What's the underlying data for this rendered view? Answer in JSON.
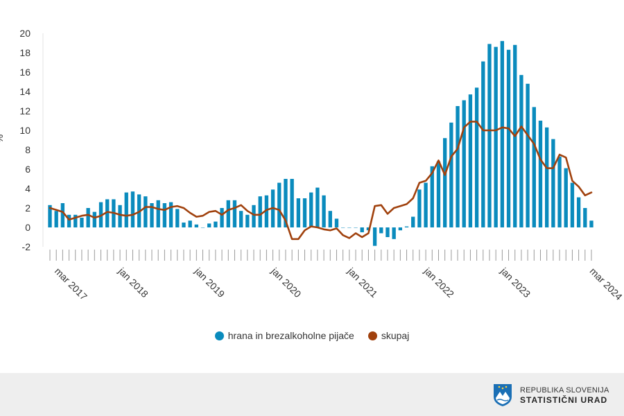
{
  "chart_data": {
    "type": "bar+line",
    "title": "",
    "xlabel": "",
    "ylabel": "%",
    "ylim": [
      -2,
      20
    ],
    "yticks": [
      "20",
      "18",
      "16",
      "14",
      "12",
      "10",
      "8",
      "6",
      "4",
      "2",
      "0",
      "-2"
    ],
    "x_tick_labels": [
      {
        "label": "mar 2017",
        "index": 0
      },
      {
        "label": "jan 2018",
        "index": 10
      },
      {
        "label": "jan 2019",
        "index": 22
      },
      {
        "label": "jan 2020",
        "index": 34
      },
      {
        "label": "jan 2021",
        "index": 46
      },
      {
        "label": "jan 2022",
        "index": 58
      },
      {
        "label": "jan 2023",
        "index": 70
      },
      {
        "label": "mar 2024",
        "index": 84
      }
    ],
    "series": [
      {
        "name": "hrana in brezalkoholne pijače",
        "kind": "bar",
        "color": "#0a8bbd",
        "values": [
          2.3,
          1.7,
          2.5,
          1.3,
          1.3,
          1.0,
          2.0,
          1.6,
          2.6,
          2.9,
          2.9,
          2.3,
          3.6,
          3.7,
          3.4,
          3.2,
          2.5,
          2.8,
          2.5,
          2.6,
          1.9,
          0.5,
          0.7,
          0.3,
          0.0,
          0.4,
          0.6,
          2.0,
          2.8,
          2.8,
          1.7,
          1.3,
          2.3,
          3.2,
          3.3,
          3.9,
          4.6,
          5.0,
          5.0,
          3.0,
          3.0,
          3.6,
          4.1,
          3.3,
          1.7,
          0.9,
          0.0,
          0.0,
          0.0,
          -0.5,
          -0.3,
          -1.9,
          -0.6,
          -1.0,
          -1.2,
          -0.3,
          0.1,
          1.1,
          3.9,
          4.6,
          6.3,
          6.8,
          9.2,
          10.8,
          12.5,
          13.1,
          13.7,
          14.4,
          17.1,
          18.9,
          18.6,
          19.2,
          18.3,
          18.8,
          15.7,
          14.8,
          12.4,
          11.0,
          10.3,
          9.1,
          7.3,
          6.1,
          4.6,
          3.1,
          2.0,
          0.7
        ]
      },
      {
        "name": "skupaj",
        "kind": "line",
        "color": "#a0410d",
        "values": [
          2.0,
          1.8,
          1.6,
          0.8,
          1.0,
          1.2,
          1.3,
          1.0,
          1.2,
          1.6,
          1.5,
          1.3,
          1.2,
          1.3,
          1.6,
          2.1,
          2.1,
          1.9,
          1.8,
          2.1,
          2.2,
          2.0,
          1.5,
          1.1,
          1.2,
          1.6,
          1.7,
          1.3,
          1.8,
          2.0,
          2.3,
          1.7,
          1.3,
          1.3,
          1.8,
          2.0,
          1.8,
          0.7,
          -1.2,
          -1.2,
          -0.3,
          0.1,
          0.0,
          -0.2,
          -0.3,
          -0.1,
          -0.8,
          -1.1,
          -0.6,
          -1.0,
          -0.6,
          2.2,
          2.3,
          1.4,
          2.0,
          2.2,
          2.4,
          3.0,
          4.6,
          4.8,
          5.6,
          6.9,
          5.4,
          7.3,
          8.1,
          10.3,
          10.9,
          10.9,
          10.0,
          10.0,
          10.0,
          10.3,
          10.2,
          9.4,
          10.4,
          9.5,
          8.6,
          7.0,
          6.1,
          6.1,
          7.5,
          7.2,
          4.8,
          4.2,
          3.3,
          3.6
        ]
      }
    ],
    "legend_position": "bottom-center"
  },
  "legend": {
    "items": [
      {
        "label": "hrana in brezalkoholne pijače",
        "color": "#0a8bbd"
      },
      {
        "label": "skupaj",
        "color": "#a0410d"
      }
    ]
  },
  "footer": {
    "line1": "REPUBLIKA SLOVENIJA",
    "line2": "STATISTIČNI URAD"
  }
}
